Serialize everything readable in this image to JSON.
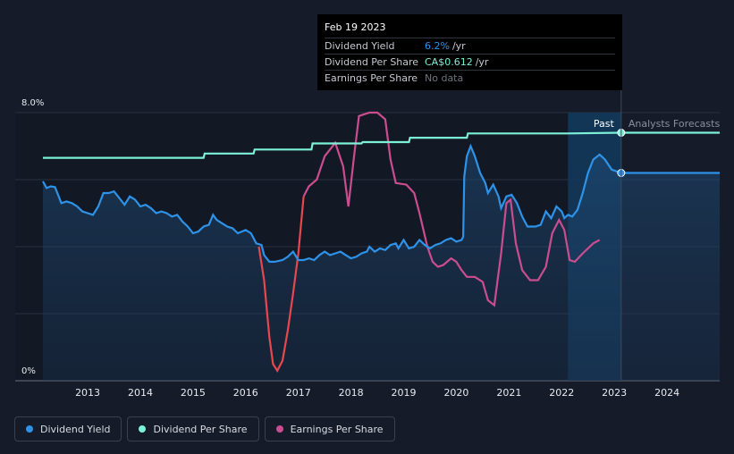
{
  "chart_data": {
    "type": "line",
    "title": "",
    "y_axis": {
      "range": [
        0,
        8.0
      ],
      "tick_labels": [
        "8.0%",
        "0%"
      ],
      "unit": "%"
    },
    "x_axis": {
      "range": [
        2012.15,
        2025.0
      ],
      "tick_labels": [
        "2013",
        "2014",
        "2015",
        "2016",
        "2017",
        "2018",
        "2019",
        "2020",
        "2021",
        "2022",
        "2023",
        "2024"
      ]
    },
    "grid": true,
    "region_labels": {
      "past": "Past",
      "forecast": "Analysts Forecasts"
    },
    "forecast_start": 2022.12,
    "today": 2023.13,
    "series": [
      {
        "name": "Dividend Yield",
        "color": "#2e93e8",
        "fill": true,
        "points": [
          [
            2012.15,
            5.95
          ],
          [
            2012.22,
            5.75
          ],
          [
            2012.3,
            5.8
          ],
          [
            2012.38,
            5.78
          ],
          [
            2012.45,
            5.5
          ],
          [
            2012.5,
            5.3
          ],
          [
            2012.6,
            5.35
          ],
          [
            2012.7,
            5.3
          ],
          [
            2012.8,
            5.2
          ],
          [
            2012.9,
            5.05
          ],
          [
            2013.0,
            5.0
          ],
          [
            2013.1,
            4.95
          ],
          [
            2013.2,
            5.2
          ],
          [
            2013.3,
            5.6
          ],
          [
            2013.4,
            5.6
          ],
          [
            2013.5,
            5.65
          ],
          [
            2013.6,
            5.45
          ],
          [
            2013.7,
            5.25
          ],
          [
            2013.8,
            5.5
          ],
          [
            2013.9,
            5.4
          ],
          [
            2014.0,
            5.2
          ],
          [
            2014.1,
            5.25
          ],
          [
            2014.2,
            5.15
          ],
          [
            2014.3,
            5.0
          ],
          [
            2014.4,
            5.05
          ],
          [
            2014.5,
            5.0
          ],
          [
            2014.6,
            4.9
          ],
          [
            2014.7,
            4.95
          ],
          [
            2014.8,
            4.75
          ],
          [
            2014.9,
            4.6
          ],
          [
            2015.0,
            4.4
          ],
          [
            2015.1,
            4.45
          ],
          [
            2015.2,
            4.6
          ],
          [
            2015.3,
            4.65
          ],
          [
            2015.38,
            4.95
          ],
          [
            2015.45,
            4.8
          ],
          [
            2015.55,
            4.7
          ],
          [
            2015.65,
            4.6
          ],
          [
            2015.75,
            4.55
          ],
          [
            2015.85,
            4.4
          ],
          [
            2016.0,
            4.5
          ],
          [
            2016.1,
            4.4
          ],
          [
            2016.2,
            4.1
          ],
          [
            2016.3,
            4.05
          ],
          [
            2016.35,
            3.75
          ],
          [
            2016.45,
            3.55
          ],
          [
            2016.55,
            3.55
          ],
          [
            2016.7,
            3.6
          ],
          [
            2016.8,
            3.7
          ],
          [
            2016.9,
            3.85
          ],
          [
            2017.0,
            3.6
          ],
          [
            2017.1,
            3.6
          ],
          [
            2017.2,
            3.65
          ],
          [
            2017.3,
            3.6
          ],
          [
            2017.4,
            3.75
          ],
          [
            2017.5,
            3.85
          ],
          [
            2017.6,
            3.75
          ],
          [
            2017.7,
            3.8
          ],
          [
            2017.8,
            3.85
          ],
          [
            2017.9,
            3.75
          ],
          [
            2018.0,
            3.65
          ],
          [
            2018.1,
            3.7
          ],
          [
            2018.2,
            3.8
          ],
          [
            2018.3,
            3.85
          ],
          [
            2018.35,
            4.0
          ],
          [
            2018.45,
            3.85
          ],
          [
            2018.55,
            3.95
          ],
          [
            2018.65,
            3.9
          ],
          [
            2018.75,
            4.05
          ],
          [
            2018.85,
            4.1
          ],
          [
            2018.9,
            3.95
          ],
          [
            2019.0,
            4.2
          ],
          [
            2019.1,
            3.95
          ],
          [
            2019.2,
            4.0
          ],
          [
            2019.3,
            4.2
          ],
          [
            2019.4,
            4.05
          ],
          [
            2019.5,
            3.95
          ],
          [
            2019.6,
            4.05
          ],
          [
            2019.7,
            4.1
          ],
          [
            2019.8,
            4.2
          ],
          [
            2019.9,
            4.25
          ],
          [
            2020.0,
            4.15
          ],
          [
            2020.1,
            4.2
          ],
          [
            2020.13,
            4.3
          ],
          [
            2020.15,
            6.1
          ],
          [
            2020.2,
            6.7
          ],
          [
            2020.27,
            7.0
          ],
          [
            2020.35,
            6.7
          ],
          [
            2020.45,
            6.2
          ],
          [
            2020.55,
            5.9
          ],
          [
            2020.6,
            5.6
          ],
          [
            2020.7,
            5.85
          ],
          [
            2020.8,
            5.5
          ],
          [
            2020.85,
            5.15
          ],
          [
            2020.95,
            5.5
          ],
          [
            2021.05,
            5.55
          ],
          [
            2021.15,
            5.3
          ],
          [
            2021.25,
            4.9
          ],
          [
            2021.35,
            4.6
          ],
          [
            2021.5,
            4.6
          ],
          [
            2021.6,
            4.65
          ],
          [
            2021.7,
            5.05
          ],
          [
            2021.8,
            4.85
          ],
          [
            2021.9,
            5.2
          ],
          [
            2022.0,
            5.05
          ],
          [
            2022.05,
            4.85
          ],
          [
            2022.12,
            4.95
          ],
          [
            2022.2,
            4.9
          ],
          [
            2022.3,
            5.1
          ],
          [
            2022.4,
            5.6
          ],
          [
            2022.5,
            6.2
          ],
          [
            2022.6,
            6.6
          ],
          [
            2022.72,
            6.75
          ],
          [
            2022.82,
            6.6
          ],
          [
            2022.95,
            6.3
          ],
          [
            2023.13,
            6.2
          ],
          [
            2023.6,
            6.2
          ],
          [
            2024.0,
            6.2
          ],
          [
            2025.0,
            6.2
          ]
        ]
      },
      {
        "name": "Dividend Per Share",
        "color": "#7df0d8",
        "points": [
          [
            2012.15,
            6.65
          ],
          [
            2015.2,
            6.65
          ],
          [
            2015.22,
            6.78
          ],
          [
            2016.15,
            6.78
          ],
          [
            2016.17,
            6.9
          ],
          [
            2017.25,
            6.9
          ],
          [
            2017.27,
            7.08
          ],
          [
            2018.2,
            7.08
          ],
          [
            2018.22,
            7.12
          ],
          [
            2019.1,
            7.12
          ],
          [
            2019.12,
            7.25
          ],
          [
            2020.2,
            7.25
          ],
          [
            2020.22,
            7.38
          ],
          [
            2022.12,
            7.38
          ],
          [
            2023.13,
            7.4
          ],
          [
            2025.0,
            7.4
          ]
        ]
      },
      {
        "name": "Earnings Per Share",
        "color": "#cc4d8f",
        "points": [
          [
            2016.25,
            4.0
          ],
          [
            2016.35,
            3.0
          ],
          [
            2016.45,
            1.3
          ],
          [
            2016.52,
            0.5
          ],
          [
            2016.6,
            0.3
          ],
          [
            2016.7,
            0.6
          ],
          [
            2016.8,
            1.5
          ],
          [
            2016.9,
            2.6
          ],
          [
            2017.0,
            3.8
          ],
          [
            2017.1,
            5.5
          ],
          [
            2017.2,
            5.8
          ],
          [
            2017.35,
            6.0
          ],
          [
            2017.5,
            6.7
          ],
          [
            2017.7,
            7.1
          ],
          [
            2017.85,
            6.4
          ],
          [
            2017.95,
            5.2
          ],
          [
            2018.05,
            6.6
          ],
          [
            2018.15,
            7.9
          ],
          [
            2018.35,
            8.0
          ],
          [
            2018.5,
            8.0
          ],
          [
            2018.65,
            7.8
          ],
          [
            2018.75,
            6.6
          ],
          [
            2018.85,
            5.9
          ],
          [
            2019.05,
            5.85
          ],
          [
            2019.2,
            5.6
          ],
          [
            2019.3,
            5.0
          ],
          [
            2019.45,
            4.0
          ],
          [
            2019.55,
            3.55
          ],
          [
            2019.65,
            3.4
          ],
          [
            2019.75,
            3.45
          ],
          [
            2019.9,
            3.65
          ],
          [
            2020.0,
            3.55
          ],
          [
            2020.1,
            3.3
          ],
          [
            2020.2,
            3.1
          ],
          [
            2020.35,
            3.1
          ],
          [
            2020.5,
            2.95
          ],
          [
            2020.6,
            2.4
          ],
          [
            2020.72,
            2.25
          ],
          [
            2020.85,
            3.8
          ],
          [
            2020.95,
            5.3
          ],
          [
            2021.03,
            5.4
          ],
          [
            2021.13,
            4.1
          ],
          [
            2021.25,
            3.3
          ],
          [
            2021.4,
            3.0
          ],
          [
            2021.55,
            3.0
          ],
          [
            2021.7,
            3.4
          ],
          [
            2021.82,
            4.4
          ],
          [
            2021.95,
            4.8
          ],
          [
            2022.05,
            4.5
          ],
          [
            2022.15,
            3.6
          ],
          [
            2022.25,
            3.55
          ],
          [
            2022.4,
            3.8
          ],
          [
            2022.6,
            4.1
          ],
          [
            2022.72,
            4.2
          ]
        ]
      }
    ]
  },
  "tooltip": {
    "date": "Feb 19 2023",
    "rows": [
      {
        "label": "Dividend Yield",
        "value": "6.2%",
        "unit": "/yr"
      },
      {
        "label": "Dividend Per Share",
        "value": "CA$0.612",
        "unit": "/yr"
      },
      {
        "label": "Earnings Per Share",
        "value": "No data",
        "unit": ""
      }
    ]
  },
  "legend": [
    {
      "label": "Dividend Yield",
      "color": "#2e93e8"
    },
    {
      "label": "Dividend Per Share",
      "color": "#7df0d8"
    },
    {
      "label": "Earnings Per Share",
      "color": "#cc4d8f"
    }
  ]
}
